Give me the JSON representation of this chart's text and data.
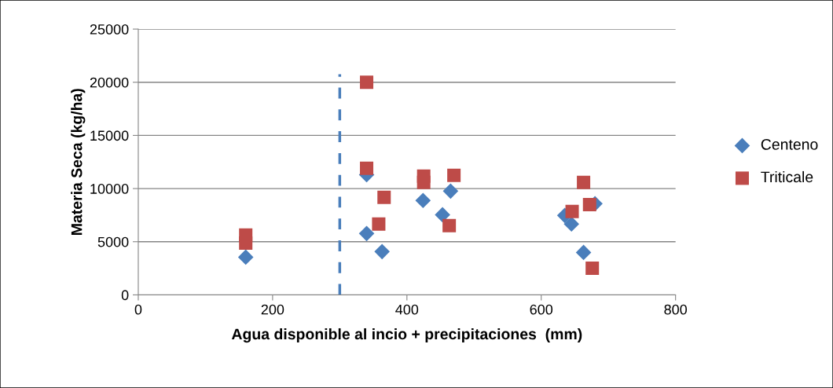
{
  "chart_data": {
    "type": "scatter",
    "xlabel": "Agua disponible al incio + precipitaciones  (mm)",
    "ylabel": "Materia Seca (kg/ha)",
    "xlim": [
      0,
      800
    ],
    "xticks": [
      0,
      200,
      400,
      600,
      800
    ],
    "ylim": [
      0,
      25000
    ],
    "yticks": [
      0,
      5000,
      10000,
      15000,
      20000,
      25000
    ],
    "grid": "y",
    "legend": "right",
    "ref_lines": [
      {
        "axis": "x",
        "value": 300,
        "color": "#4a7ebb",
        "line_style": "dashed"
      }
    ],
    "series": [
      {
        "name": "Centeno",
        "color": "#4a7ebb",
        "marker": "diamond",
        "x": [
          160,
          340,
          363,
          340,
          424,
          453,
          465,
          635,
          645,
          680,
          663
        ],
        "values": [
          3550,
          5770,
          4070,
          11300,
          8880,
          7540,
          9760,
          7470,
          6660,
          8580,
          3990
        ]
      },
      {
        "name": "Triticale",
        "color": "#be4b48",
        "marker": "square",
        "x": [
          160,
          160,
          340,
          340,
          366,
          358,
          425,
          425,
          470,
          463,
          663,
          646,
          672,
          676
        ],
        "values": [
          5620,
          4880,
          20000,
          11900,
          9170,
          6660,
          11170,
          10580,
          11240,
          6510,
          10580,
          7840,
          8500,
          2510
        ]
      }
    ]
  }
}
